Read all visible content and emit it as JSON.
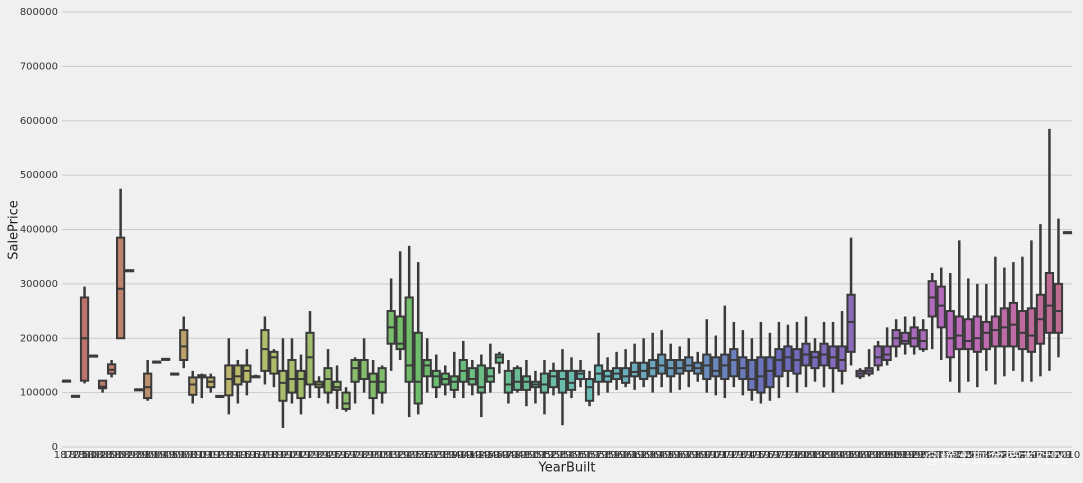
{
  "chart_data": {
    "type": "box",
    "xlabel": "YearBuilt",
    "ylabel": "SalePrice",
    "ylim": [
      0,
      800000
    ],
    "yticks": [
      0,
      100000,
      200000,
      300000,
      400000,
      500000,
      600000,
      700000,
      800000
    ],
    "grid": true,
    "palette": "husl",
    "categories": [
      "1872",
      "1875",
      "1880",
      "1882",
      "1885",
      "1890",
      "1892",
      "1893",
      "1898",
      "1900",
      "1904",
      "1905",
      "1906",
      "1908",
      "1910",
      "1911",
      "1912",
      "1913",
      "1914",
      "1915",
      "1916",
      "1917",
      "1918",
      "1919",
      "1920",
      "1921",
      "1922",
      "1923",
      "1924",
      "1925",
      "1926",
      "1927",
      "1928",
      "1929",
      "1930",
      "1931",
      "1932",
      "1934",
      "1935",
      "1936",
      "1937",
      "1938",
      "1939",
      "1940",
      "1941",
      "1942",
      "1945",
      "1946",
      "1947",
      "1948",
      "1949",
      "1950",
      "1951",
      "1952",
      "1953",
      "1954",
      "1955",
      "1956",
      "1957",
      "1958",
      "1959",
      "1960",
      "1961",
      "1962",
      "1963",
      "1964",
      "1965",
      "1966",
      "1967",
      "1968",
      "1969",
      "1970",
      "1971",
      "1972",
      "1973",
      "1974",
      "1975",
      "1976",
      "1977",
      "1978",
      "1979",
      "1980",
      "1981",
      "1982",
      "1983",
      "1984",
      "1985",
      "1986",
      "1987",
      "1988",
      "1989",
      "1990",
      "1991",
      "1992",
      "1993",
      "1994",
      "1995",
      "1996",
      "1997",
      "1998",
      "1999",
      "2000",
      "2001",
      "2002",
      "2003",
      "2004",
      "2005",
      "2006",
      "2007",
      "2008",
      "2009",
      "2010"
    ],
    "values": [
      [
        122000,
        122000,
        122000,
        122000,
        122000
      ],
      [
        94000,
        94000,
        94000,
        94000,
        94000
      ],
      [
        117000,
        122000,
        200000,
        275000,
        295000
      ],
      [
        168000,
        168000,
        168000,
        168000,
        168000
      ],
      [
        100000,
        108000,
        111000,
        122000,
        122000
      ],
      [
        128000,
        135000,
        142000,
        152000,
        160000
      ],
      [
        200000,
        200000,
        291000,
        385000,
        475000
      ],
      [
        325000,
        325000,
        325000,
        325000,
        325000
      ],
      [
        106000,
        106000,
        106000,
        106000,
        106000
      ],
      [
        85000,
        90000,
        110000,
        135000,
        160000
      ],
      [
        157000,
        157000,
        157000,
        157000,
        157000
      ],
      [
        162000,
        162000,
        162000,
        162000,
        162000
      ],
      [
        135000,
        135000,
        135000,
        135000,
        135000
      ],
      [
        145000,
        160000,
        185000,
        215000,
        240000
      ],
      [
        80000,
        96000,
        115000,
        128000,
        140000
      ],
      [
        90000,
        128000,
        130000,
        132000,
        135000
      ],
      [
        100000,
        110000,
        120000,
        128000,
        135000
      ],
      [
        90000,
        92000,
        92000,
        94000,
        95000
      ],
      [
        60000,
        95000,
        125000,
        150000,
        200000
      ],
      [
        80000,
        115000,
        130000,
        150000,
        160000
      ],
      [
        95000,
        120000,
        140000,
        150000,
        180000
      ],
      [
        128000,
        130000,
        130000,
        130000,
        133000
      ],
      [
        115000,
        140000,
        180000,
        215000,
        240000
      ],
      [
        110000,
        135000,
        165000,
        175000,
        180000
      ],
      [
        35000,
        85000,
        118000,
        140000,
        200000
      ],
      [
        80000,
        100000,
        125000,
        160000,
        200000
      ],
      [
        60000,
        90000,
        125000,
        140000,
        170000
      ],
      [
        90000,
        115000,
        165000,
        210000,
        250000
      ],
      [
        90000,
        110000,
        115000,
        120000,
        130000
      ],
      [
        80000,
        100000,
        125000,
        145000,
        180000
      ],
      [
        70000,
        105000,
        110000,
        120000,
        150000
      ],
      [
        65000,
        70000,
        80000,
        100000,
        110000
      ],
      [
        80000,
        120000,
        145000,
        160000,
        165000
      ],
      [
        100000,
        125000,
        160000,
        160000,
        200000
      ],
      [
        60000,
        90000,
        120000,
        135000,
        160000
      ],
      [
        80000,
        100000,
        120000,
        145000,
        150000
      ],
      [
        140000,
        190000,
        220000,
        250000,
        310000
      ],
      [
        160000,
        180000,
        190000,
        240000,
        360000
      ],
      [
        55000,
        120000,
        150000,
        275000,
        370000
      ],
      [
        60000,
        80000,
        120000,
        210000,
        340000
      ],
      [
        100000,
        130000,
        150000,
        160000,
        200000
      ],
      [
        90000,
        110000,
        130000,
        140000,
        170000
      ],
      [
        95000,
        115000,
        125000,
        135000,
        150000
      ],
      [
        90000,
        105000,
        120000,
        130000,
        175000
      ],
      [
        90000,
        120000,
        140000,
        160000,
        195000
      ],
      [
        95000,
        115000,
        125000,
        145000,
        160000
      ],
      [
        55000,
        100000,
        110000,
        150000,
        170000
      ],
      [
        100000,
        120000,
        130000,
        145000,
        190000
      ],
      [
        135000,
        155000,
        165000,
        170000,
        175000
      ],
      [
        80000,
        100000,
        115000,
        140000,
        160000
      ],
      [
        100000,
        105000,
        120000,
        145000,
        150000
      ],
      [
        75000,
        105000,
        120000,
        130000,
        160000
      ],
      [
        80000,
        110000,
        115000,
        120000,
        140000
      ],
      [
        60000,
        100000,
        115000,
        135000,
        160000
      ],
      [
        95000,
        110000,
        130000,
        140000,
        155000
      ],
      [
        40000,
        100000,
        125000,
        140000,
        180000
      ],
      [
        90000,
        105000,
        118000,
        140000,
        165000
      ],
      [
        110000,
        125000,
        135000,
        140000,
        160000
      ],
      [
        75000,
        85000,
        110000,
        125000,
        140000
      ],
      [
        95000,
        120000,
        135000,
        150000,
        210000
      ],
      [
        100000,
        120000,
        130000,
        140000,
        165000
      ],
      [
        105000,
        125000,
        135000,
        145000,
        175000
      ],
      [
        110000,
        118000,
        130000,
        145000,
        180000
      ],
      [
        105000,
        130000,
        138000,
        155000,
        190000
      ],
      [
        110000,
        125000,
        140000,
        155000,
        200000
      ],
      [
        100000,
        130000,
        145000,
        160000,
        210000
      ],
      [
        110000,
        135000,
        150000,
        170000,
        215000
      ],
      [
        100000,
        130000,
        145000,
        160000,
        190000
      ],
      [
        105000,
        135000,
        145000,
        160000,
        185000
      ],
      [
        110000,
        140000,
        150000,
        165000,
        200000
      ],
      [
        120000,
        135000,
        145000,
        155000,
        175000
      ],
      [
        100000,
        125000,
        150000,
        170000,
        235000
      ],
      [
        95000,
        130000,
        140000,
        165000,
        205000
      ],
      [
        90000,
        125000,
        150000,
        170000,
        260000
      ],
      [
        110000,
        130000,
        160000,
        180000,
        230000
      ],
      [
        95000,
        125000,
        145000,
        165000,
        215000
      ],
      [
        85000,
        105000,
        125000,
        160000,
        200000
      ],
      [
        80000,
        100000,
        130000,
        165000,
        230000
      ],
      [
        85000,
        110000,
        140000,
        165000,
        210000
      ],
      [
        90000,
        130000,
        160000,
        180000,
        230000
      ],
      [
        110000,
        140000,
        165000,
        185000,
        225000
      ],
      [
        100000,
        135000,
        160000,
        180000,
        230000
      ],
      [
        110000,
        150000,
        170000,
        190000,
        240000
      ],
      [
        120000,
        145000,
        165000,
        175000,
        200000
      ],
      [
        110000,
        150000,
        170000,
        190000,
        230000
      ],
      [
        100000,
        145000,
        165000,
        185000,
        230000
      ],
      [
        115000,
        140000,
        160000,
        185000,
        250000
      ],
      [
        150000,
        175000,
        230000,
        280000,
        385000
      ],
      [
        125000,
        130000,
        135000,
        140000,
        145000
      ],
      [
        130000,
        135000,
        140000,
        145000,
        180000
      ],
      [
        140000,
        150000,
        165000,
        185000,
        195000
      ],
      [
        150000,
        160000,
        170000,
        185000,
        220000
      ],
      [
        165000,
        185000,
        200000,
        215000,
        235000
      ],
      [
        170000,
        190000,
        195000,
        210000,
        240000
      ],
      [
        170000,
        185000,
        200000,
        220000,
        240000
      ],
      [
        175000,
        180000,
        195000,
        215000,
        235000
      ],
      [
        180000,
        240000,
        275000,
        305000,
        320000
      ],
      [
        160000,
        220000,
        260000,
        295000,
        330000
      ],
      [
        120000,
        165000,
        200000,
        250000,
        320000
      ],
      [
        100000,
        180000,
        205000,
        240000,
        380000
      ],
      [
        120000,
        180000,
        195000,
        235000,
        310000
      ],
      [
        110000,
        175000,
        200000,
        240000,
        300000
      ],
      [
        140000,
        180000,
        210000,
        230000,
        300000
      ],
      [
        115000,
        185000,
        215000,
        240000,
        350000
      ],
      [
        130000,
        185000,
        220000,
        255000,
        330000
      ],
      [
        140000,
        185000,
        225000,
        265000,
        340000
      ],
      [
        120000,
        180000,
        210000,
        250000,
        350000
      ],
      [
        120000,
        175000,
        205000,
        255000,
        380000
      ],
      [
        130000,
        190000,
        235000,
        280000,
        410000
      ],
      [
        140000,
        210000,
        260000,
        320000,
        585000
      ],
      [
        165000,
        210000,
        250000,
        300000,
        420000
      ],
      [
        395000,
        395000,
        395000,
        395000,
        395000
      ]
    ]
  },
  "watermark": "@稀土掘金技术社区"
}
